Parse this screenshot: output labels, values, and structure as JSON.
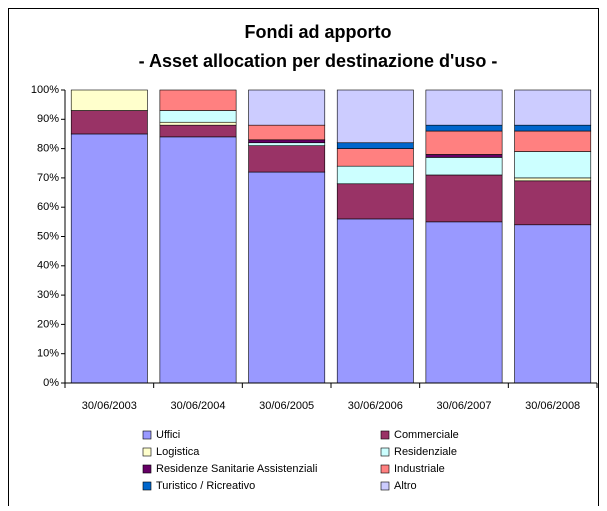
{
  "chart_data": {
    "type": "stacked_bar",
    "title": "Fondi ad apporto",
    "subtitle": "- Asset allocation per destinazione d'uso -",
    "categories": [
      "30/06/2003",
      "30/06/2004",
      "30/06/2005",
      "30/06/2006",
      "30/06/2007",
      "30/06/2008"
    ],
    "series": [
      {
        "name": "Uffici",
        "color": "#9999ff",
        "values": [
          85,
          84,
          72,
          56,
          55,
          54
        ]
      },
      {
        "name": "Commerciale",
        "color": "#993366",
        "values": [
          8,
          4,
          9,
          12,
          16,
          15
        ]
      },
      {
        "name": "Logistica",
        "color": "#ffffcc",
        "values": [
          7,
          1,
          0,
          0,
          0,
          1
        ]
      },
      {
        "name": "Residenziale",
        "color": "#ccffff",
        "values": [
          0,
          4,
          1,
          6,
          6,
          9
        ]
      },
      {
        "name": "Residenze Sanitarie Assistenziali",
        "color": "#660066",
        "values": [
          0,
          0,
          1,
          0,
          1,
          0
        ]
      },
      {
        "name": "Industriale",
        "color": "#ff8080",
        "values": [
          0,
          7,
          5,
          6,
          8,
          7
        ]
      },
      {
        "name": "Turistico / Ricreativo",
        "color": "#0066cc",
        "values": [
          0,
          0,
          0,
          2,
          2,
          2
        ]
      },
      {
        "name": "Altro",
        "color": "#ccccff",
        "values": [
          0,
          0,
          12,
          18,
          12,
          12
        ]
      }
    ],
    "ylim": [
      0,
      100
    ],
    "yticks": [
      {
        "value": 0,
        "label": "0%"
      },
      {
        "value": 10,
        "label": "10%"
      },
      {
        "value": 20,
        "label": "20%"
      },
      {
        "value": 30,
        "label": "30%"
      },
      {
        "value": 40,
        "label": "40%"
      },
      {
        "value": 50,
        "label": "50%"
      },
      {
        "value": 60,
        "label": "60%"
      },
      {
        "value": 70,
        "label": "70%"
      },
      {
        "value": 80,
        "label": "80%"
      },
      {
        "value": 90,
        "label": "90%"
      },
      {
        "value": 100,
        "label": "100%"
      }
    ],
    "grid": false
  }
}
